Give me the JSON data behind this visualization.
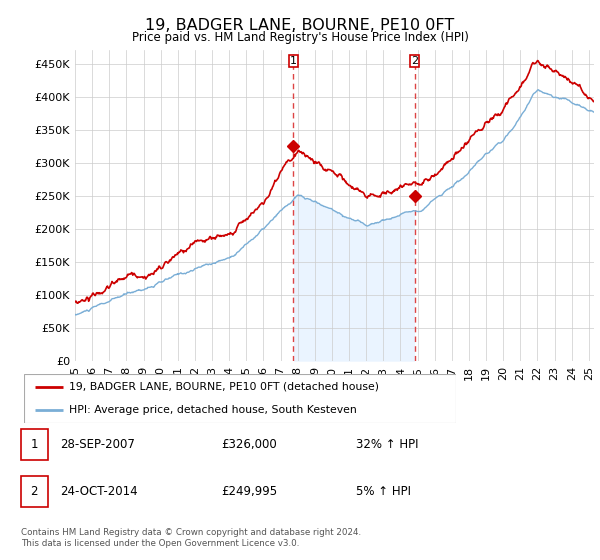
{
  "title": "19, BADGER LANE, BOURNE, PE10 0FT",
  "subtitle": "Price paid vs. HM Land Registry's House Price Index (HPI)",
  "ytick_values": [
    0,
    50000,
    100000,
    150000,
    200000,
    250000,
    300000,
    350000,
    400000,
    450000
  ],
  "ylim": [
    0,
    470000
  ],
  "xlim_start": 1995.0,
  "xlim_end": 2025.3,
  "sale1": {
    "date_num": 2007.75,
    "price": 326000,
    "label": "1"
  },
  "sale2": {
    "date_num": 2014.83,
    "price": 249995,
    "label": "2"
  },
  "legend_line1": "19, BADGER LANE, BOURNE, PE10 0FT (detached house)",
  "legend_line2": "HPI: Average price, detached house, South Kesteven",
  "table_rows": [
    {
      "num": "1",
      "date": "28-SEP-2007",
      "price": "£326,000",
      "hpi": "32% ↑ HPI"
    },
    {
      "num": "2",
      "date": "24-OCT-2014",
      "price": "£249,995",
      "hpi": "5% ↑ HPI"
    }
  ],
  "footer": "Contains HM Land Registry data © Crown copyright and database right 2024.\nThis data is licensed under the Open Government Licence v3.0.",
  "line_color_red": "#cc0000",
  "line_color_blue": "#7aaed6",
  "fill_color_blue": "#ddeeff",
  "bg_color": "#ffffff",
  "grid_color": "#cccccc",
  "vline_color": "#dd4444"
}
